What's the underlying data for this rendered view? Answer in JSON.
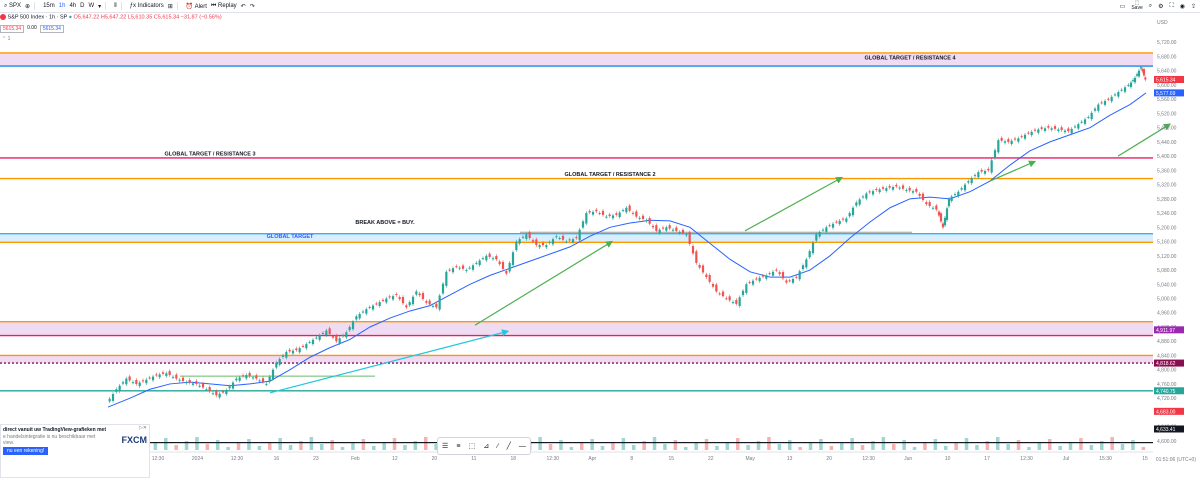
{
  "toolbar": {
    "symbol": "SPX",
    "intervals": [
      "15m",
      "1h",
      "4h",
      "D",
      "W"
    ],
    "indicators_label": "Indicators",
    "alert_label": "Alert",
    "replay_label": "Replay",
    "save_label": "Save"
  },
  "legend": {
    "title": "S&P 500 Index · 1h · SP",
    "ohlc": "O5,647.22 H5,647.22 L5,610.35 C5,615.34 −31.87 (−0.56%)"
  },
  "pricebox": {
    "sell": "5615.34",
    "spread": "0.00",
    "buy": "5615.34"
  },
  "promo": {
    "line1": "direct vanuit uw TradingView-grafieken met",
    "line2": "e handelsintegratie is nu beschikbaar met",
    "line3": "view.",
    "cta": "nu een rekening!",
    "brand": "FXCM"
  },
  "chart_data": {
    "type": "line",
    "title": "S&P 500 Index · 1h · SP",
    "currency": "USD",
    "ylim": [
      4580,
      5760
    ],
    "yticks": [
      5720,
      5680,
      5640,
      5600,
      5560,
      5520,
      5480,
      5440,
      5400,
      5360,
      5320,
      5280,
      5240,
      5200,
      5160,
      5120,
      5080,
      5040,
      5000,
      4960,
      4920,
      4880,
      4840,
      4800,
      4760,
      4720,
      4680,
      4640,
      4600
    ],
    "xticks": [
      "12:30",
      "2024",
      "12:30",
      "16",
      "23",
      "Feb",
      "12",
      "20",
      "11",
      "18",
      "12:30",
      "Apr",
      "8",
      "15",
      "22",
      "May",
      "13",
      "20",
      "12:30",
      "Jun",
      "10",
      "17",
      "12:30",
      "Jul",
      "15:30",
      "15"
    ],
    "time_label": "01:51:06 (UTC+0)",
    "price_labels": [
      {
        "value": 5615.34,
        "text": "5,615.34",
        "color": "#f23645"
      },
      {
        "value": 5577.69,
        "text": "5,577.69",
        "color": "#2962ff"
      },
      {
        "value": 4911.97,
        "text": "4,911.97",
        "color": "#9c27b0"
      },
      {
        "value": 4818.62,
        "text": "4,818.62",
        "color": "#880e4f"
      },
      {
        "value": 4740.75,
        "text": "4,740.75",
        "color": "#26a69a"
      },
      {
        "value": 4683.0,
        "text": "4,683.00",
        "color": "#f23645"
      },
      {
        "value": 4633.41,
        "text": "4,633.41",
        "color": "#131722"
      }
    ],
    "levels": [
      {
        "value": 5690,
        "color": "#ff9800"
      },
      {
        "value": 5653,
        "color": "#1e88e5"
      },
      {
        "value": 5395,
        "color": "#e91e63",
        "label": "GLOBAL TARGET / RESISTANCE  3"
      },
      {
        "value": 5337,
        "color": "#ff9800",
        "label": "GLOBAL TARGET / RESISTANCE 2"
      },
      {
        "value": 5182,
        "color": "#29b6f6"
      },
      {
        "value": 5158,
        "color": "#ff9800"
      },
      {
        "value": 4935,
        "color": "#ff9800"
      },
      {
        "value": 4896,
        "color": "#e91e63"
      },
      {
        "value": 4840,
        "color": "#ff9800"
      },
      {
        "value": 4818.62,
        "color": "#880e4f",
        "dashed": true
      },
      {
        "value": 4740.75,
        "color": "#26a69a"
      }
    ],
    "zones": [
      {
        "from": 5653,
        "to": 5690,
        "color": "#e1bee7"
      },
      {
        "from": 5158,
        "to": 5182,
        "color": "#bbdefb"
      },
      {
        "from": 4896,
        "to": 4935,
        "color": "#e1bee7"
      },
      {
        "from": 4818.62,
        "to": 4840,
        "color": "#e1bee7"
      }
    ],
    "annotations": [
      {
        "text": "GLOBAL TARGET / RESISTANCE  4",
        "x": 910,
        "y": 5672
      },
      {
        "text": "GLOBAL TARGET / RESISTANCE  3",
        "x": 210,
        "y": 5402
      },
      {
        "text": "GLOBAL TARGET / RESISTANCE 2",
        "x": 610,
        "y": 5344
      },
      {
        "text": "BREAK ABOVE = BUY.",
        "x": 385,
        "y": 5210
      },
      {
        "text": "GLOBAL TARGET",
        "x": 290,
        "y": 5170
      }
    ],
    "price_series": [
      [
        108,
        4705
      ],
      [
        118,
        4745
      ],
      [
        128,
        4775
      ],
      [
        138,
        4760
      ],
      [
        148,
        4772
      ],
      [
        158,
        4785
      ],
      [
        168,
        4790
      ],
      [
        178,
        4775
      ],
      [
        188,
        4765
      ],
      [
        198,
        4760
      ],
      [
        208,
        4745
      ],
      [
        218,
        4728
      ],
      [
        228,
        4742
      ],
      [
        238,
        4775
      ],
      [
        248,
        4785
      ],
      [
        258,
        4775
      ],
      [
        268,
        4760
      ],
      [
        278,
        4820
      ],
      [
        288,
        4850
      ],
      [
        298,
        4855
      ],
      [
        308,
        4872
      ],
      [
        318,
        4890
      ],
      [
        328,
        4910
      ],
      [
        338,
        4880
      ],
      [
        348,
        4905
      ],
      [
        358,
        4950
      ],
      [
        368,
        4970
      ],
      [
        378,
        4985
      ],
      [
        388,
        5000
      ],
      [
        398,
        5010
      ],
      [
        408,
        4975
      ],
      [
        418,
        5020
      ],
      [
        428,
        4988
      ],
      [
        438,
        4975
      ],
      [
        448,
        5075
      ],
      [
        458,
        5090
      ],
      [
        468,
        5080
      ],
      [
        478,
        5100
      ],
      [
        488,
        5120
      ],
      [
        498,
        5110
      ],
      [
        508,
        5070
      ],
      [
        518,
        5160
      ],
      [
        528,
        5180
      ],
      [
        538,
        5150
      ],
      [
        548,
        5150
      ],
      [
        558,
        5175
      ],
      [
        568,
        5160
      ],
      [
        578,
        5170
      ],
      [
        588,
        5240
      ],
      [
        598,
        5245
      ],
      [
        608,
        5230
      ],
      [
        618,
        5235
      ],
      [
        628,
        5255
      ],
      [
        638,
        5230
      ],
      [
        648,
        5220
      ],
      [
        658,
        5190
      ],
      [
        668,
        5200
      ],
      [
        678,
        5190
      ],
      [
        688,
        5180
      ],
      [
        698,
        5100
      ],
      [
        708,
        5060
      ],
      [
        718,
        5020
      ],
      [
        728,
        5000
      ],
      [
        738,
        4985
      ],
      [
        748,
        5040
      ],
      [
        758,
        5055
      ],
      [
        768,
        5065
      ],
      [
        778,
        5080
      ],
      [
        788,
        5045
      ],
      [
        798,
        5060
      ],
      [
        808,
        5110
      ],
      [
        818,
        5180
      ],
      [
        828,
        5200
      ],
      [
        838,
        5215
      ],
      [
        848,
        5225
      ],
      [
        858,
        5270
      ],
      [
        868,
        5295
      ],
      [
        878,
        5305
      ],
      [
        888,
        5310
      ],
      [
        898,
        5315
      ],
      [
        908,
        5305
      ],
      [
        918,
        5300
      ],
      [
        928,
        5265
      ],
      [
        938,
        5250
      ],
      [
        944,
        5200
      ],
      [
        950,
        5280
      ],
      [
        960,
        5300
      ],
      [
        970,
        5330
      ],
      [
        980,
        5355
      ],
      [
        990,
        5360
      ],
      [
        1000,
        5445
      ],
      [
        1010,
        5440
      ],
      [
        1020,
        5450
      ],
      [
        1030,
        5465
      ],
      [
        1040,
        5475
      ],
      [
        1050,
        5480
      ],
      [
        1060,
        5475
      ],
      [
        1070,
        5470
      ],
      [
        1080,
        5490
      ],
      [
        1090,
        5510
      ],
      [
        1100,
        5545
      ],
      [
        1110,
        5560
      ],
      [
        1120,
        5580
      ],
      [
        1130,
        5600
      ],
      [
        1136,
        5620
      ],
      [
        1142,
        5650
      ],
      [
        1146,
        5615.34
      ]
    ],
    "ma_series": [
      [
        108,
        4695
      ],
      [
        130,
        4720
      ],
      [
        150,
        4745
      ],
      [
        170,
        4760
      ],
      [
        190,
        4765
      ],
      [
        210,
        4760
      ],
      [
        230,
        4755
      ],
      [
        250,
        4760
      ],
      [
        270,
        4768
      ],
      [
        290,
        4800
      ],
      [
        310,
        4835
      ],
      [
        330,
        4862
      ],
      [
        350,
        4885
      ],
      [
        370,
        4920
      ],
      [
        390,
        4945
      ],
      [
        410,
        4965
      ],
      [
        430,
        4980
      ],
      [
        450,
        5010
      ],
      [
        470,
        5040
      ],
      [
        490,
        5065
      ],
      [
        510,
        5085
      ],
      [
        530,
        5105
      ],
      [
        550,
        5125
      ],
      [
        570,
        5145
      ],
      [
        590,
        5175
      ],
      [
        610,
        5200
      ],
      [
        630,
        5212
      ],
      [
        650,
        5220
      ],
      [
        670,
        5218
      ],
      [
        690,
        5200
      ],
      [
        710,
        5155
      ],
      [
        730,
        5110
      ],
      [
        750,
        5075
      ],
      [
        770,
        5060
      ],
      [
        790,
        5060
      ],
      [
        810,
        5080
      ],
      [
        830,
        5120
      ],
      [
        850,
        5170
      ],
      [
        870,
        5215
      ],
      [
        890,
        5255
      ],
      [
        910,
        5280
      ],
      [
        930,
        5285
      ],
      [
        950,
        5280
      ],
      [
        970,
        5300
      ],
      [
        990,
        5330
      ],
      [
        1010,
        5375
      ],
      [
        1030,
        5415
      ],
      [
        1050,
        5440
      ],
      [
        1070,
        5460
      ],
      [
        1090,
        5480
      ],
      [
        1110,
        5515
      ],
      [
        1130,
        5545
      ],
      [
        1146,
        5577.69
      ]
    ],
    "volume_bars_count": 100,
    "arrows": [
      {
        "from": [
          270,
          4735
        ],
        "to": [
          508,
          4908
        ],
        "color": "#26c6da"
      },
      {
        "from": [
          475,
          4925
        ],
        "to": [
          612,
          5160
        ],
        "color": "#4caf50"
      },
      {
        "from": [
          745,
          5190
        ],
        "to": [
          842,
          5340
        ],
        "color": "#4caf50"
      },
      {
        "from": [
          990,
          5330
        ],
        "to": [
          1035,
          5385
        ],
        "color": "#4caf50"
      },
      {
        "from": [
          1118,
          5400
        ],
        "to": [
          1170,
          5490
        ],
        "color": "#4caf50"
      }
    ],
    "hlines": [
      {
        "from_x": 180,
        "to_x": 375,
        "value": 4782,
        "color": "#66bb6a"
      },
      {
        "from_x": 520,
        "to_x": 912,
        "value": 5186,
        "color": "#9e9e9e"
      }
    ]
  }
}
